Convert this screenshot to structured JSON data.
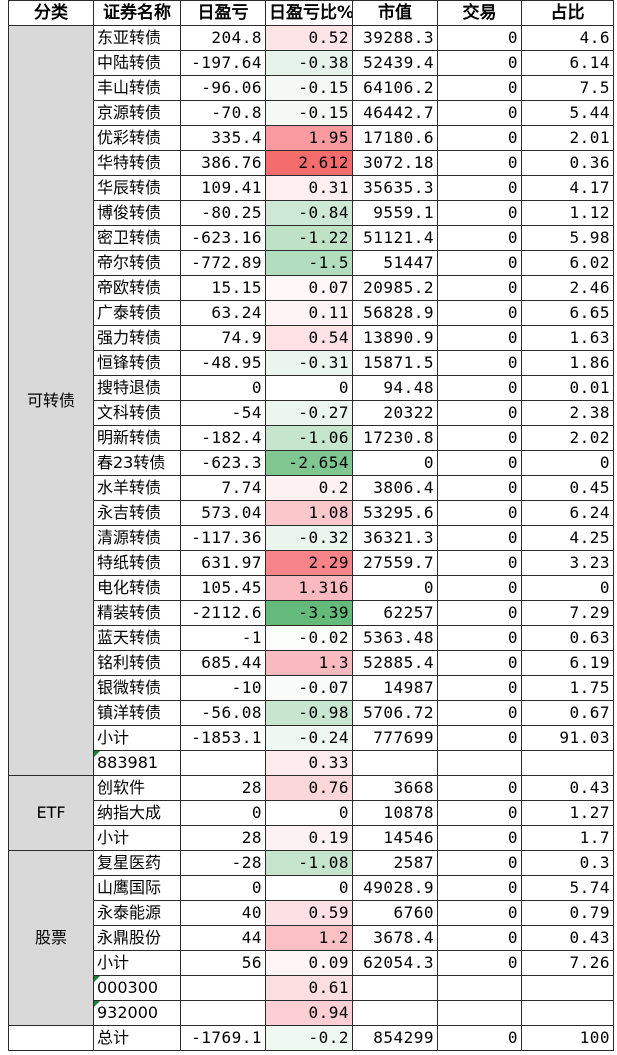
{
  "headers": {
    "category": "分类",
    "name": "证券名称",
    "pnl": "日盈亏",
    "pnl_pct": "日盈亏比%",
    "market_value": "市值",
    "trades": "交易",
    "ratio": "占比"
  },
  "groups": [
    {
      "category": "可转债",
      "rows": [
        {
          "name": "东亚转债",
          "pnl": "204.8",
          "pct": "0.52",
          "mv": "39288.3",
          "tr": "0",
          "ratio": "4.6",
          "color": "#fce4e7"
        },
        {
          "name": "中陆转债",
          "pnl": "-197.64",
          "pct": "-0.38",
          "mv": "52439.4",
          "tr": "0",
          "ratio": "6.14",
          "color": "#e6f3ea"
        },
        {
          "name": "丰山转债",
          "pnl": "-96.06",
          "pct": "-0.15",
          "mv": "64106.2",
          "tr": "0",
          "ratio": "7.5",
          "color": "#f4f9f5"
        },
        {
          "name": "京源转债",
          "pnl": "-70.8",
          "pct": "-0.15",
          "mv": "46442.7",
          "tr": "0",
          "ratio": "5.44",
          "color": "#f4f9f5"
        },
        {
          "name": "优彩转债",
          "pnl": "335.4",
          "pct": "1.95",
          "mv": "17180.6",
          "tr": "0",
          "ratio": "2.01",
          "color": "#f89aa0"
        },
        {
          "name": "华特转债",
          "pnl": "386.76",
          "pct": "2.612",
          "mv": "3072.18",
          "tr": "0",
          "ratio": "0.36",
          "color": "#f56c6c"
        },
        {
          "name": "华辰转债",
          "pnl": "109.41",
          "pct": "0.31",
          "mv": "35635.3",
          "tr": "0",
          "ratio": "4.17",
          "color": "#fdeef0"
        },
        {
          "name": "博俊转债",
          "pnl": "-80.25",
          "pct": "-0.84",
          "mv": "9559.1",
          "tr": "0",
          "ratio": "1.12",
          "color": "#cde8d4"
        },
        {
          "name": "密卫转债",
          "pnl": "-623.16",
          "pct": "-1.22",
          "mv": "51121.4",
          "tr": "0",
          "ratio": "5.98",
          "color": "#bfe2c7"
        },
        {
          "name": "帝尔转债",
          "pnl": "-772.89",
          "pct": "-1.5",
          "mv": "51447",
          "tr": "0",
          "ratio": "6.02",
          "color": "#b2dcbe"
        },
        {
          "name": "帝欧转债",
          "pnl": "15.15",
          "pct": "0.07",
          "mv": "20985.2",
          "tr": "0",
          "ratio": "2.46",
          "color": "#fff7f8"
        },
        {
          "name": "广泰转债",
          "pnl": "63.24",
          "pct": "0.11",
          "mv": "56828.9",
          "tr": "0",
          "ratio": "6.65",
          "color": "#fef4f5"
        },
        {
          "name": "强力转债",
          "pnl": "74.9",
          "pct": "0.54",
          "mv": "13890.9",
          "tr": "0",
          "ratio": "1.63",
          "color": "#fce2e5"
        },
        {
          "name": "恒锋转债",
          "pnl": "-48.95",
          "pct": "-0.31",
          "mv": "15871.5",
          "tr": "0",
          "ratio": "1.86",
          "color": "#eaf5ee"
        },
        {
          "name": "搜特退债",
          "pnl": "0",
          "pct": "0",
          "mv": "94.48",
          "tr": "0",
          "ratio": "0.01",
          "color": "#ffffff"
        },
        {
          "name": "文科转债",
          "pnl": "-54",
          "pct": "-0.27",
          "mv": "20322",
          "tr": "0",
          "ratio": "2.38",
          "color": "#ecf6ef"
        },
        {
          "name": "明新转债",
          "pnl": "-182.4",
          "pct": "-1.06",
          "mv": "17230.8",
          "tr": "0",
          "ratio": "2.02",
          "color": "#c5e5cc"
        },
        {
          "name": "春23转债",
          "pnl": "-623.3",
          "pct": "-2.654",
          "mv": "0",
          "tr": "0",
          "ratio": "0",
          "color": "#7fc691"
        },
        {
          "name": "水羊转债",
          "pnl": "7.74",
          "pct": "0.2",
          "mv": "3806.4",
          "tr": "0",
          "ratio": "0.45",
          "color": "#fdf1f2"
        },
        {
          "name": "永吉转债",
          "pnl": "573.04",
          "pct": "1.08",
          "mv": "53295.6",
          "tr": "0",
          "ratio": "6.24",
          "color": "#fac7cb"
        },
        {
          "name": "清源转债",
          "pnl": "-117.36",
          "pct": "-0.32",
          "mv": "36321.3",
          "tr": "0",
          "ratio": "4.25",
          "color": "#e9f5ed"
        },
        {
          "name": "特纸转债",
          "pnl": "631.97",
          "pct": "2.29",
          "mv": "27559.7",
          "tr": "0",
          "ratio": "3.23",
          "color": "#f78488"
        },
        {
          "name": "电化转债",
          "pnl": "105.45",
          "pct": "1.316",
          "mv": "0",
          "tr": "0",
          "ratio": "0",
          "color": "#f9b9be"
        },
        {
          "name": "精装转债",
          "pnl": "-2112.6",
          "pct": "-3.39",
          "mv": "62257",
          "tr": "0",
          "ratio": "7.29",
          "color": "#63ba7b"
        },
        {
          "name": "蓝天转债",
          "pnl": "-1",
          "pct": "-0.02",
          "mv": "5363.48",
          "tr": "0",
          "ratio": "0.63",
          "color": "#fbfdfb"
        },
        {
          "name": "铭利转债",
          "pnl": "685.44",
          "pct": "1.3",
          "mv": "52885.4",
          "tr": "0",
          "ratio": "6.19",
          "color": "#f9babf"
        },
        {
          "name": "银微转债",
          "pnl": "-10",
          "pct": "-0.07",
          "mv": "14987",
          "tr": "0",
          "ratio": "1.75",
          "color": "#f8fbf9"
        },
        {
          "name": "镇洋转债",
          "pnl": "-56.08",
          "pct": "-0.98",
          "mv": "5706.72",
          "tr": "0",
          "ratio": "0.67",
          "color": "#c8e6cf"
        },
        {
          "name": "小计",
          "pnl": "-1853.1",
          "pct": "-0.24",
          "mv": "777699",
          "tr": "0",
          "ratio": "91.03",
          "color": "#eef7f1"
        },
        {
          "name": "883981",
          "pnl": "",
          "pct": "0.33",
          "mv": "",
          "tr": "",
          "ratio": "",
          "color": "#fdeaec",
          "code": true
        }
      ]
    },
    {
      "category": "ETF",
      "rows": [
        {
          "name": "创软件",
          "pnl": "28",
          "pct": "0.76",
          "mv": "3668",
          "tr": "0",
          "ratio": "0.43",
          "color": "#fbd7da"
        },
        {
          "name": "纳指大成",
          "pnl": "0",
          "pct": "0",
          "mv": "10878",
          "tr": "0",
          "ratio": "1.27",
          "color": "#ffffff"
        },
        {
          "name": "小计",
          "pnl": "28",
          "pct": "0.19",
          "mv": "14546",
          "tr": "0",
          "ratio": "1.7",
          "color": "#fdf2f3"
        }
      ]
    },
    {
      "category": "股票",
      "rows": [
        {
          "name": "复星医药",
          "pnl": "-28",
          "pct": "-1.08",
          "mv": "2587",
          "tr": "0",
          "ratio": "0.3",
          "color": "#c4e4cb"
        },
        {
          "name": "山鹰国际",
          "pnl": "0",
          "pct": "0",
          "mv": "49028.9",
          "tr": "0",
          "ratio": "5.74",
          "color": "#ffffff"
        },
        {
          "name": "永泰能源",
          "pnl": "40",
          "pct": "0.59",
          "mv": "6760",
          "tr": "0",
          "ratio": "0.79",
          "color": "#fce0e3"
        },
        {
          "name": "永鼎股份",
          "pnl": "44",
          "pct": "1.2",
          "mv": "3678.4",
          "tr": "0",
          "ratio": "0.43",
          "color": "#fac0c4"
        },
        {
          "name": "小计",
          "pnl": "56",
          "pct": "0.09",
          "mv": "62054.3",
          "tr": "0",
          "ratio": "7.26",
          "color": "#fff5f6"
        },
        {
          "name": "000300",
          "pnl": "",
          "pct": "0.61",
          "mv": "",
          "tr": "",
          "ratio": "",
          "color": "#fcdde0",
          "code": true
        },
        {
          "name": "932000",
          "pnl": "",
          "pct": "0.94",
          "mv": "",
          "tr": "",
          "ratio": "",
          "color": "#fbcfd3",
          "code": true
        }
      ]
    },
    {
      "category": "",
      "rows": [
        {
          "name": "总计",
          "pnl": "-1769.1",
          "pct": "-0.2",
          "mv": "854299",
          "tr": "0",
          "ratio": "100",
          "color": "#f0f8f2"
        }
      ]
    }
  ]
}
